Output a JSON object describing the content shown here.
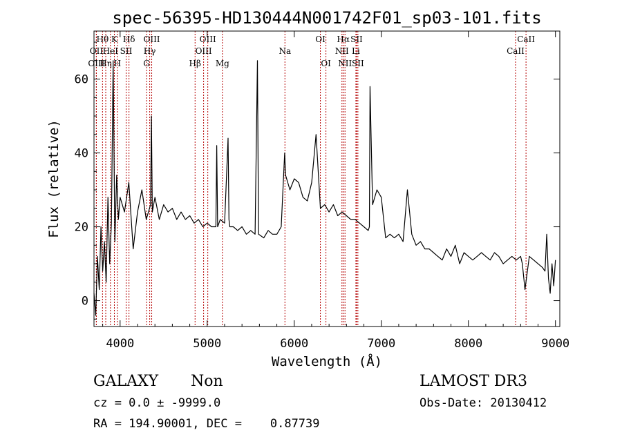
{
  "chart_data": {
    "type": "line",
    "title": "spec-56395-HD130444N001742F01_sp03-101.fits",
    "xlabel": "Wavelength (Å)",
    "ylabel": "Flux (relative)",
    "xlim": [
      3700,
      9050
    ],
    "ylim": [
      -7,
      73
    ],
    "x_ticks": [
      4000,
      5000,
      6000,
      7000,
      8000,
      9000
    ],
    "y_ticks": [
      0,
      20,
      40,
      60
    ],
    "grid": false,
    "series": [
      {
        "x": [
          3700,
          3720,
          3740,
          3760,
          3780,
          3800,
          3820,
          3840,
          3860,
          3880,
          3900,
          3920,
          3940,
          3960,
          3980,
          4000,
          4050,
          4100,
          4150,
          4200,
          4250,
          4300,
          4350,
          4360,
          4370,
          4400,
          4450,
          4500,
          4550,
          4600,
          4650,
          4700,
          4750,
          4800,
          4850,
          4900,
          4950,
          5000,
          5050,
          5100,
          5110,
          5120,
          5150,
          5200,
          5240,
          5250,
          5260,
          5300,
          5350,
          5400,
          5450,
          5500,
          5550,
          5577,
          5590,
          5650,
          5700,
          5750,
          5800,
          5850,
          5890,
          5900,
          5950,
          6000,
          6050,
          6100,
          6150,
          6200,
          6250,
          6300,
          6350,
          6400,
          6450,
          6500,
          6550,
          6600,
          6650,
          6700,
          6750,
          6800,
          6850,
          6863,
          6870,
          6900,
          6950,
          7000,
          7050,
          7100,
          7150,
          7200,
          7250,
          7300,
          7350,
          7400,
          7450,
          7500,
          7550,
          7600,
          7650,
          7700,
          7750,
          7800,
          7850,
          7900,
          7950,
          8000,
          8050,
          8100,
          8150,
          8200,
          8250,
          8300,
          8350,
          8400,
          8450,
          8500,
          8550,
          8600,
          8620,
          8650,
          8700,
          8750,
          8800,
          8850,
          8880,
          8900,
          8920,
          8940,
          8960,
          8980,
          9000
        ],
        "y": [
          2,
          -4,
          12,
          3,
          20,
          8,
          16,
          5,
          28,
          10,
          21,
          65,
          16,
          34,
          22,
          28,
          24,
          32,
          14,
          24,
          30,
          22,
          26,
          50,
          24,
          28,
          22,
          26,
          24,
          25,
          22,
          24,
          22,
          23,
          21,
          22,
          20,
          21,
          20,
          20,
          42,
          20,
          22,
          21,
          44,
          22,
          20,
          20,
          19,
          20,
          18,
          19,
          18,
          65,
          18,
          17,
          19,
          18,
          18,
          20,
          40,
          34,
          30,
          33,
          32,
          28,
          27,
          32,
          45,
          25,
          26,
          24,
          26,
          23,
          24,
          23,
          22,
          22,
          21,
          20,
          19,
          20,
          58,
          26,
          30,
          28,
          17,
          18,
          17,
          18,
          16,
          30,
          18,
          15,
          16,
          14,
          14,
          13,
          12,
          11,
          14,
          12,
          15,
          10,
          13,
          12,
          11,
          12,
          13,
          12,
          11,
          13,
          12,
          10,
          11,
          12,
          11,
          12,
          10,
          3,
          12,
          11,
          10,
          9,
          8,
          18,
          6,
          2,
          10,
          4,
          11
        ]
      }
    ],
    "line_markers": [
      {
        "label": "Hθ",
        "x": 3798,
        "row": 1
      },
      {
        "label": "K",
        "x": 3934,
        "row": 1
      },
      {
        "label": "Hδ",
        "x": 4102,
        "row": 1
      },
      {
        "label": "OIII",
        "x": 4363,
        "row": 1
      },
      {
        "label": "OIII",
        "x": 5007,
        "row": 1
      },
      {
        "label": "OI",
        "x": 6300,
        "row": 1
      },
      {
        "label": "Hα",
        "x": 6563,
        "row": 1
      },
      {
        "label": "SII",
        "x": 6716,
        "row": 1
      },
      {
        "label": "CaII",
        "x": 8662,
        "row": 1
      },
      {
        "label": "OII",
        "x": 3727,
        "row": 2
      },
      {
        "label": "HeI",
        "x": 3889,
        "row": 2
      },
      {
        "label": "SII",
        "x": 4069,
        "row": 2
      },
      {
        "label": "Hγ",
        "x": 4340,
        "row": 2
      },
      {
        "label": "OIII",
        "x": 4959,
        "row": 2
      },
      {
        "label": "Na",
        "x": 5893,
        "row": 2
      },
      {
        "label": "NII",
        "x": 6548,
        "row": 2
      },
      {
        "label": "Li",
        "x": 6708,
        "row": 2
      },
      {
        "label": "CaII",
        "x": 8542,
        "row": 2
      },
      {
        "label": "OIII",
        "x": 3727,
        "row": 3
      },
      {
        "label": "Hη",
        "x": 3835,
        "row": 3
      },
      {
        "label": "H",
        "x": 3969,
        "row": 3
      },
      {
        "label": "G",
        "x": 4304,
        "row": 3
      },
      {
        "label": "Hβ",
        "x": 4861,
        "row": 3
      },
      {
        "label": "Mg",
        "x": 5175,
        "row": 3
      },
      {
        "label": "OI",
        "x": 6364,
        "row": 3
      },
      {
        "label": "NII",
        "x": 6583,
        "row": 3
      },
      {
        "label": "SII",
        "x": 6731,
        "row": 3
      }
    ]
  },
  "footer": {
    "object_type": "GALAXY",
    "subclass": "Non",
    "survey": "LAMOST DR3",
    "cz": "cz = 0.0 ± -9999.0",
    "obs_date": "Obs-Date: 20130412",
    "coords": "RA = 194.90001, DEC =    0.87739"
  },
  "colors": {
    "line_marker": "#b40000",
    "spectrum": "#000000"
  }
}
